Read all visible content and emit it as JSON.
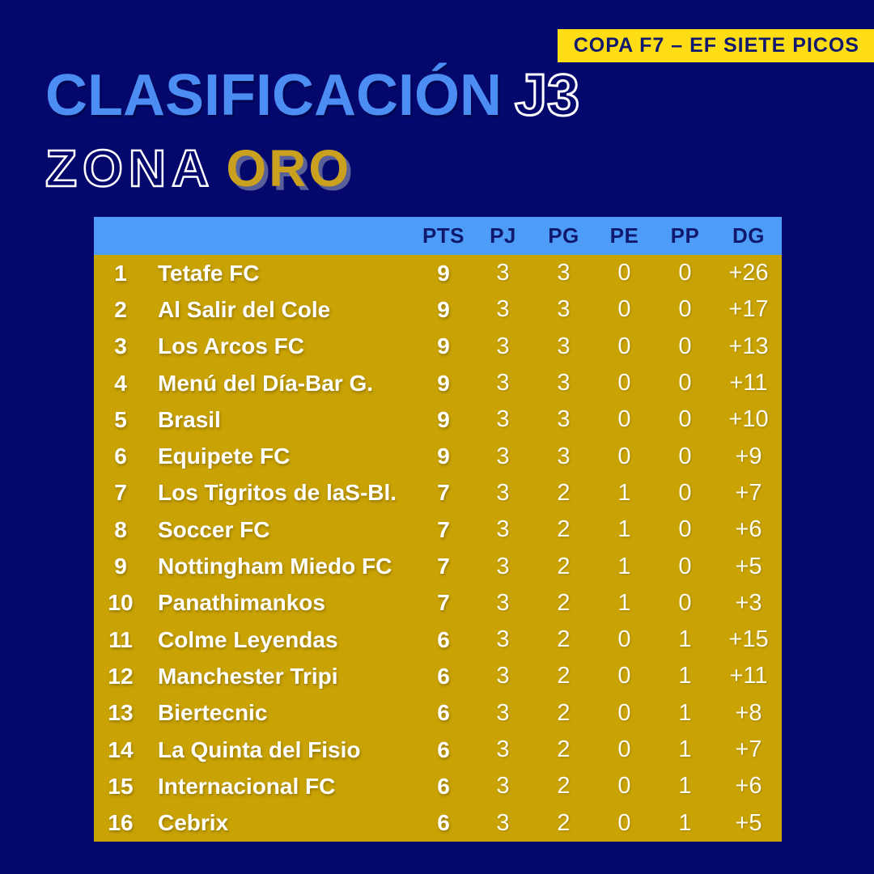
{
  "badge": {
    "label": "COPA F7 – EF SIETE PICOS"
  },
  "title": {
    "main": "CLASIFICACIÓN",
    "round": "J3"
  },
  "subtitle": {
    "prefix": "ZONA",
    "zone": "ORO"
  },
  "chart_data": {
    "type": "table",
    "title": "CLASIFICACIÓN J3 – ZONA ORO",
    "columns": [
      "PTS",
      "PJ",
      "PG",
      "PE",
      "PP",
      "DG"
    ],
    "rows": [
      {
        "pos": "1",
        "team": "Tetafe FC",
        "values": [
          "9",
          "3",
          "3",
          "0",
          "0",
          "+26"
        ]
      },
      {
        "pos": "2",
        "team": "Al Salir del Cole",
        "values": [
          "9",
          "3",
          "3",
          "0",
          "0",
          "+17"
        ]
      },
      {
        "pos": "3",
        "team": "Los Arcos FC",
        "values": [
          "9",
          "3",
          "3",
          "0",
          "0",
          "+13"
        ]
      },
      {
        "pos": "4",
        "team": "Menú del Día-Bar G.",
        "values": [
          "9",
          "3",
          "3",
          "0",
          "0",
          "+11"
        ]
      },
      {
        "pos": "5",
        "team": "Brasil",
        "values": [
          "9",
          "3",
          "3",
          "0",
          "0",
          "+10"
        ]
      },
      {
        "pos": "6",
        "team": "Equipete FC",
        "values": [
          "9",
          "3",
          "3",
          "0",
          "0",
          "+9"
        ]
      },
      {
        "pos": "7",
        "team": "Los Tigritos de laS-Bl.",
        "values": [
          "7",
          "3",
          "2",
          "1",
          "0",
          "+7"
        ]
      },
      {
        "pos": "8",
        "team": "Soccer FC",
        "values": [
          "7",
          "3",
          "2",
          "1",
          "0",
          "+6"
        ]
      },
      {
        "pos": "9",
        "team": "Nottingham Miedo FC",
        "values": [
          "7",
          "3",
          "2",
          "1",
          "0",
          "+5"
        ]
      },
      {
        "pos": "10",
        "team": "Panathimankos",
        "values": [
          "7",
          "3",
          "2",
          "1",
          "0",
          "+3"
        ]
      },
      {
        "pos": "11",
        "team": "Colme Leyendas",
        "values": [
          "6",
          "3",
          "2",
          "0",
          "1",
          "+15"
        ]
      },
      {
        "pos": "12",
        "team": "Manchester Tripi",
        "values": [
          "6",
          "3",
          "2",
          "0",
          "1",
          "+11"
        ]
      },
      {
        "pos": "13",
        "team": "Biertecnic",
        "values": [
          "6",
          "3",
          "2",
          "0",
          "1",
          "+8"
        ]
      },
      {
        "pos": "14",
        "team": "La Quinta del Fisio",
        "values": [
          "6",
          "3",
          "2",
          "0",
          "1",
          "+7"
        ]
      },
      {
        "pos": "15",
        "team": "Internacional FC",
        "values": [
          "6",
          "3",
          "2",
          "0",
          "1",
          "+6"
        ]
      },
      {
        "pos": "16",
        "team": "Cebrix",
        "values": [
          "6",
          "3",
          "2",
          "0",
          "1",
          "+5"
        ]
      }
    ]
  },
  "colors": {
    "background": "#04076B",
    "title_blue": "#4C8DF3",
    "header_blue": "#4D9DF8",
    "table_gold": "#C9A303",
    "badge_yellow": "#FFDD15",
    "oro_gold": "#C9A11E",
    "navy_text": "#10196E",
    "white": "#FFFFFF"
  }
}
